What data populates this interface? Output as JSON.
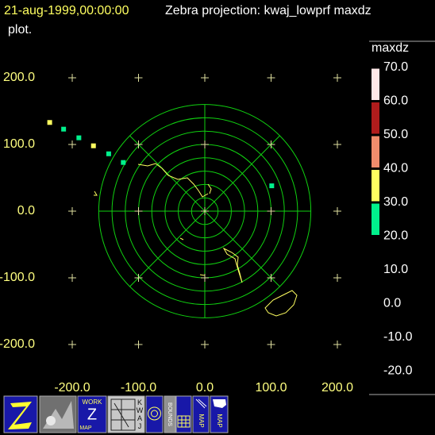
{
  "chart_data": [
    {
      "type": "scatter",
      "title": "21-aug-1999,00:00:00",
      "subtitle": [
        "Zebra projection: kwaj_lowprf maxdz",
        "plot."
      ],
      "xlim": [
        -300,
        340
      ],
      "ylim": [
        -240,
        260
      ],
      "xticks": [
        {
          "value": -200,
          "label": "-200.0"
        },
        {
          "value": -100,
          "label": "-100.0"
        },
        {
          "value": 0,
          "label": "0.0"
        },
        {
          "value": 100,
          "label": "100.0"
        },
        {
          "value": 200,
          "label": "200.0"
        }
      ],
      "yticks": [
        {
          "value": 200,
          "label": "200.0"
        },
        {
          "value": 100,
          "label": "100.0"
        },
        {
          "value": 0,
          "label": "0.0"
        },
        {
          "value": -100,
          "label": "-100.0"
        },
        {
          "value": -200,
          "label": "-200.0"
        }
      ],
      "series": [
        {
          "name": "maxdz",
          "x": [
            -234,
            -213,
            -190,
            -168,
            -145,
            -123,
            101
          ],
          "values": [
            133,
            123,
            110,
            98,
            86,
            73,
            38
          ],
          "z": [
            35,
            25,
            25,
            35,
            25,
            25,
            25
          ]
        }
      ]
    },
    {
      "type": "colorbar",
      "title": "maxdz",
      "ylim": [
        -20,
        70
      ],
      "yticks": [
        {
          "value": 70,
          "label": "70.0"
        },
        {
          "value": 60,
          "label": "60.0"
        },
        {
          "value": 50,
          "label": "50.0"
        },
        {
          "value": 40,
          "label": "40.0"
        },
        {
          "value": 30,
          "label": "30.0"
        },
        {
          "value": 20,
          "label": "20.0"
        },
        {
          "value": 10,
          "label": "10.0"
        },
        {
          "value": 0,
          "label": "0.0"
        },
        {
          "value": -10,
          "label": "-10.0"
        },
        {
          "value": -20,
          "label": "-20.0"
        }
      ],
      "bins": [
        20,
        30,
        40,
        50,
        60,
        70
      ],
      "colors": [
        "#00f08c",
        "#ffff60",
        "#f08c6c",
        "#b01c1c",
        "#ffe8e8"
      ]
    }
  ],
  "toolbar": {
    "work_map": [
      "WORK",
      "Z",
      "MAP"
    ],
    "kwaj": "KWAJ",
    "bounds": "BOUNDS",
    "map": "MAP",
    "us_map": "MAP"
  }
}
